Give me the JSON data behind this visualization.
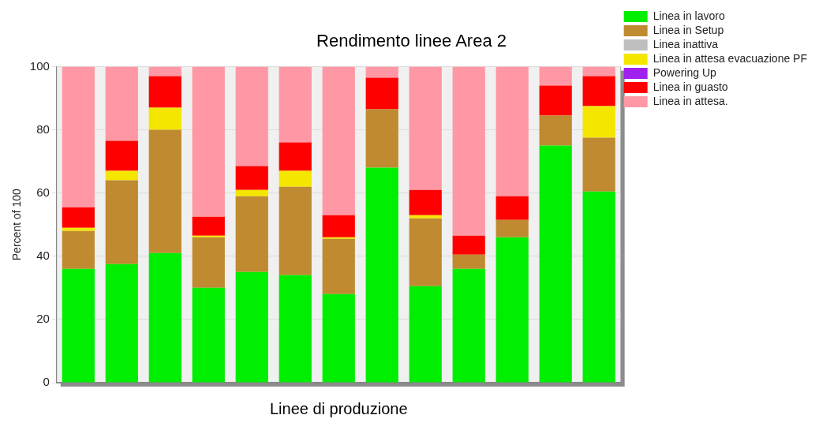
{
  "chart_data": {
    "type": "bar",
    "title": "Rendimento linee Area 2",
    "xlabel": "Linee di produzione",
    "ylabel": "Percent of 100",
    "categories": [
      null,
      null,
      null,
      null,
      null,
      null,
      null,
      null,
      null,
      null,
      null,
      null,
      null
    ],
    "stacked": true,
    "ylim": [
      0,
      100
    ],
    "yticks": [
      0,
      20,
      40,
      60,
      80,
      100
    ],
    "grid": "y",
    "legend": "right",
    "tick_labels": "y",
    "series": [
      {
        "name": "Linea in lavoro",
        "color": "#00ee00",
        "values": [
          36,
          37.5,
          41,
          30,
          35,
          34,
          28,
          68,
          30.5,
          36,
          46,
          75,
          60.5
        ]
      },
      {
        "name": "Linea in Setup",
        "color": "#bf8a30",
        "values": [
          12,
          26.5,
          39,
          16,
          24,
          28,
          17.5,
          18.5,
          21.5,
          4.5,
          5.5,
          9.5,
          17
        ]
      },
      {
        "name": "Linea inattiva",
        "color": "#bebebe",
        "values": [
          0,
          0,
          0,
          0,
          0,
          0,
          0,
          0,
          0,
          0,
          0,
          0,
          0
        ]
      },
      {
        "name": "Linea in attesa evacuazione PF",
        "color": "#f5e600",
        "values": [
          1,
          3,
          7,
          0.5,
          2,
          5,
          0.5,
          0,
          1,
          0,
          0,
          0,
          10
        ]
      },
      {
        "name": "Powering Up",
        "color": "#a020f0",
        "values": [
          0,
          0,
          0,
          0,
          0,
          0,
          0,
          0,
          0,
          0,
          0,
          0,
          0
        ]
      },
      {
        "name": "Linea in guasto",
        "color": "#ff0000",
        "values": [
          6.5,
          9.5,
          10,
          6,
          7.5,
          9,
          7,
          10,
          8,
          6,
          7.5,
          9.5,
          9.5
        ]
      },
      {
        "name": "Linea in attesa.",
        "color": "#ff98a4",
        "values": [
          44.5,
          23.5,
          3,
          47.5,
          31.5,
          24,
          47,
          3.5,
          39,
          53.5,
          41,
          6,
          3
        ]
      }
    ]
  }
}
